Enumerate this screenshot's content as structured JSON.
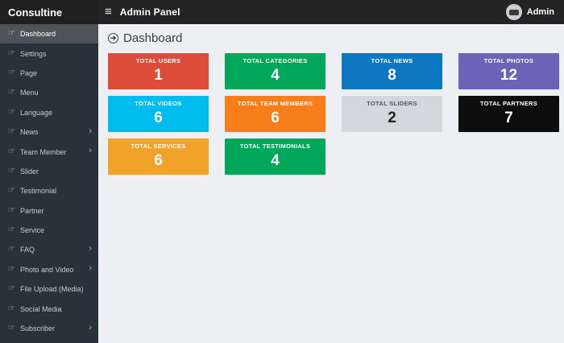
{
  "brand": "Consultine",
  "topbar": {
    "title": "Admin Panel",
    "hamburger_icon": "≡",
    "user": "Admin"
  },
  "sidebar": {
    "item_icon": "hand-pointer-icon",
    "items": [
      {
        "label": "Dashboard",
        "active": true,
        "has_submenu": false
      },
      {
        "label": "Settings",
        "active": false,
        "has_submenu": false
      },
      {
        "label": "Page",
        "active": false,
        "has_submenu": false
      },
      {
        "label": "Menu",
        "active": false,
        "has_submenu": false
      },
      {
        "label": "Language",
        "active": false,
        "has_submenu": false
      },
      {
        "label": "News",
        "active": false,
        "has_submenu": true
      },
      {
        "label": "Team Member",
        "active": false,
        "has_submenu": true
      },
      {
        "label": "Slider",
        "active": false,
        "has_submenu": false
      },
      {
        "label": "Testimonial",
        "active": false,
        "has_submenu": false
      },
      {
        "label": "Partner",
        "active": false,
        "has_submenu": false
      },
      {
        "label": "Service",
        "active": false,
        "has_submenu": false
      },
      {
        "label": "FAQ",
        "active": false,
        "has_submenu": true
      },
      {
        "label": "Photo and Video",
        "active": false,
        "has_submenu": true
      },
      {
        "label": "File Upload (Media)",
        "active": false,
        "has_submenu": false
      },
      {
        "label": "Social Media",
        "active": false,
        "has_submenu": false
      },
      {
        "label": "Subscriber",
        "active": false,
        "has_submenu": true
      }
    ]
  },
  "content": {
    "heading": "Dashboard",
    "cards": [
      {
        "label": "TOTAL USERS",
        "value": "1",
        "bg": "#dd4b39",
        "fg": "#ffffff"
      },
      {
        "label": "TOTAL CATEGORIES",
        "value": "4",
        "bg": "#00a65a",
        "fg": "#ffffff"
      },
      {
        "label": "TOTAL NEWS",
        "value": "8",
        "bg": "#0d77c2",
        "fg": "#ffffff"
      },
      {
        "label": "TOTAL PHOTOS",
        "value": "12",
        "bg": "#6a63b8",
        "fg": "#ffffff"
      },
      {
        "label": "TOTAL VIDEOS",
        "value": "6",
        "bg": "#00bced",
        "fg": "#ffffff"
      },
      {
        "label": "TOTAL TEAM MEMBERS",
        "value": "6",
        "bg": "#f87e1b",
        "fg": "#ffffff"
      },
      {
        "label": "TOTAL SLIDERS",
        "value": "2",
        "bg": "#d4d8dd",
        "fg": "#222222",
        "label_fg": "#50565c"
      },
      {
        "label": "TOTAL PARTNERS",
        "value": "7",
        "bg": "#0e0e0e",
        "fg": "#ffffff"
      },
      {
        "label": "TOTAL SERVICES",
        "value": "6",
        "bg": "#f0a229",
        "fg": "#ffffff"
      },
      {
        "label": "TOTAL TESTIMONIALS",
        "value": "4",
        "bg": "#00a65a",
        "fg": "#ffffff"
      }
    ]
  }
}
